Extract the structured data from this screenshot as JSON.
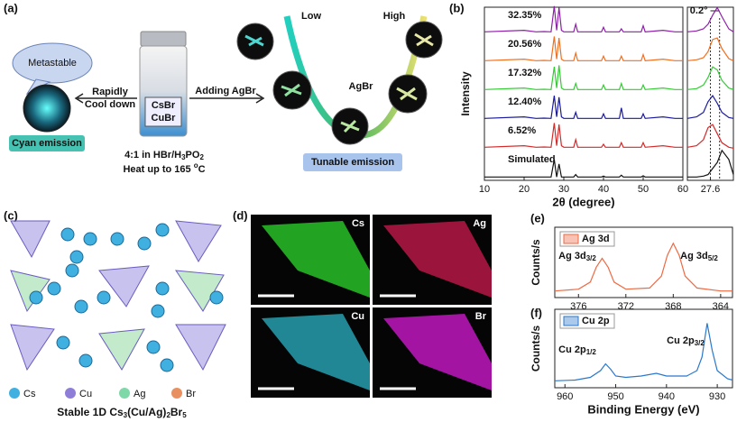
{
  "panel_a": {
    "label": "(a)",
    "metastable": "Metastable",
    "rapidly": "Rapidly",
    "cool_down": "Cool down",
    "cyan_emission": "Cyan emission",
    "vial": [
      "CsBr",
      "CuBr"
    ],
    "ratio": [
      "4:1 in HBr/H",
      "3",
      "PO",
      "2"
    ],
    "heat": [
      "Heat up to 165 ",
      "o",
      "C"
    ],
    "adding": "Adding AgBr",
    "low": "Low",
    "high": "High",
    "agbr": "AgBr",
    "tunable": "Tunable emission"
  },
  "panel_b": {
    "label": "(b)"
  },
  "panel_c": {
    "label": "(c)",
    "legend": [
      "Cs",
      "Cu",
      "Ag",
      "Br"
    ],
    "caption": [
      "Stable 1D Cs",
      "3",
      "(Cu/Ag)",
      "2",
      "Br",
      "5"
    ]
  },
  "panel_d": {
    "label": "(d)",
    "maps": [
      "Cs",
      "Ag",
      "Cu",
      "Br"
    ]
  },
  "panel_e": {
    "label": "(e)"
  },
  "panel_f": {
    "label": "(f)"
  },
  "chart_data": [
    {
      "type": "line",
      "offset": true,
      "xlabel": "2θ (degree)",
      "ylabel": "Intensity",
      "xlim": [
        10,
        60
      ],
      "xticks": [
        10,
        20,
        30,
        40,
        50,
        60
      ],
      "ylim": [
        0,
        1
      ],
      "x": [
        10,
        20,
        23,
        25,
        26.8,
        27.6,
        28.2,
        28.8,
        29.4,
        30,
        32.5,
        33,
        33.5,
        39.5,
        40,
        40.5,
        44,
        44.5,
        45,
        49.5,
        50,
        50.5,
        55,
        58,
        60
      ],
      "series": [
        {
          "name": "32.35%",
          "color": "#8e1fa8",
          "values": [
            0.05,
            0.1,
            0.05,
            0.06,
            0.05,
            0.9,
            0.1,
            0.85,
            0.1,
            0.05,
            0.05,
            0.3,
            0.05,
            0.05,
            0.2,
            0.05,
            0.05,
            0.15,
            0.05,
            0.05,
            0.25,
            0.05,
            0.1,
            0.05,
            0.05
          ]
        },
        {
          "name": "20.56%",
          "color": "#f07020",
          "values": [
            0.05,
            0.1,
            0.05,
            0.06,
            0.05,
            0.85,
            0.1,
            0.8,
            0.1,
            0.05,
            0.05,
            0.3,
            0.05,
            0.05,
            0.2,
            0.05,
            0.05,
            0.2,
            0.05,
            0.05,
            0.25,
            0.05,
            0.1,
            0.05,
            0.05
          ]
        },
        {
          "name": "17.32%",
          "color": "#33cc33",
          "values": [
            0.05,
            0.1,
            0.05,
            0.06,
            0.05,
            0.8,
            0.1,
            0.85,
            0.1,
            0.05,
            0.05,
            0.25,
            0.05,
            0.05,
            0.2,
            0.05,
            0.05,
            0.25,
            0.05,
            0.05,
            0.2,
            0.05,
            0.1,
            0.05,
            0.05
          ]
        },
        {
          "name": "12.40%",
          "color": "#1a1a9c",
          "values": [
            0.05,
            0.1,
            0.05,
            0.06,
            0.05,
            0.8,
            0.1,
            0.75,
            0.1,
            0.05,
            0.05,
            0.25,
            0.05,
            0.05,
            0.2,
            0.05,
            0.05,
            0.4,
            0.05,
            0.05,
            0.2,
            0.05,
            0.1,
            0.05,
            0.05
          ]
        },
        {
          "name": "6.52%",
          "color": "#d42a2a",
          "values": [
            0.05,
            0.1,
            0.05,
            0.06,
            0.05,
            0.85,
            0.1,
            0.8,
            0.1,
            0.05,
            0.05,
            0.3,
            0.05,
            0.05,
            0.15,
            0.05,
            0.05,
            0.2,
            0.05,
            0.05,
            0.2,
            0.05,
            0.1,
            0.05,
            0.05
          ]
        },
        {
          "name": "Simulated",
          "color": "#111111",
          "values": [
            0.02,
            0.02,
            0.02,
            0.02,
            0.02,
            0.6,
            0.02,
            0.45,
            0.02,
            0.02,
            0.02,
            0.1,
            0.02,
            0.02,
            0.05,
            0.02,
            0.02,
            0.08,
            0.02,
            0.02,
            0.06,
            0.02,
            0.02,
            0.02,
            0.02
          ]
        }
      ]
    },
    {
      "type": "line",
      "offset": true,
      "xlim": [
        27.1,
        28.1
      ],
      "xticks": [
        27.6
      ],
      "ylim": [
        0,
        1
      ],
      "reference_lines": [
        27.6,
        27.8
      ],
      "annotation": "0.2°",
      "x": [
        27.1,
        27.3,
        27.45,
        27.55,
        27.65,
        27.75,
        27.85,
        28.0,
        28.1
      ],
      "series": [
        {
          "color": "#8e1fa8",
          "values": [
            0.05,
            0.08,
            0.15,
            0.3,
            0.6,
            0.85,
            0.55,
            0.15,
            0.05
          ]
        },
        {
          "color": "#f07020",
          "values": [
            0.05,
            0.08,
            0.15,
            0.35,
            0.75,
            0.8,
            0.45,
            0.12,
            0.05
          ]
        },
        {
          "color": "#33cc33",
          "values": [
            0.05,
            0.08,
            0.2,
            0.45,
            0.8,
            0.7,
            0.35,
            0.1,
            0.05
          ]
        },
        {
          "color": "#1a1a9c",
          "values": [
            0.05,
            0.1,
            0.25,
            0.6,
            0.8,
            0.55,
            0.25,
            0.08,
            0.05
          ]
        },
        {
          "color": "#d42a2a",
          "values": [
            0.05,
            0.1,
            0.3,
            0.7,
            0.8,
            0.5,
            0.2,
            0.05,
            0.02
          ]
        },
        {
          "color": "#111111",
          "values": [
            0.02,
            0.02,
            0.05,
            0.1,
            0.3,
            0.5,
            0.9,
            0.6,
            0.1
          ]
        }
      ]
    },
    {
      "type": "line",
      "ylabel": "Counts/s",
      "xlim": [
        378,
        363
      ],
      "xticks": [
        376,
        372,
        368,
        364
      ],
      "ylim": [
        0,
        1
      ],
      "x": [
        378,
        376,
        375,
        374.5,
        374,
        373.5,
        373,
        372,
        370,
        369,
        368.5,
        368,
        367.5,
        367,
        366,
        364,
        363
      ],
      "series": [
        {
          "name": "Ag 3d",
          "color": "#ee6a44",
          "values": [
            0.05,
            0.08,
            0.2,
            0.45,
            0.6,
            0.45,
            0.2,
            0.08,
            0.1,
            0.3,
            0.65,
            0.85,
            0.65,
            0.3,
            0.1,
            0.05,
            0.05
          ]
        }
      ],
      "annotations": [
        [
          "Ag 3d",
          "3/2"
        ],
        [
          "Ag 3d",
          "5/2"
        ]
      ]
    },
    {
      "type": "line",
      "ylabel": "Counts/s",
      "xlabel": "Binding Energy (eV)",
      "xlim": [
        962,
        927
      ],
      "xticks": [
        960,
        950,
        940,
        930
      ],
      "ylim": [
        0,
        1
      ],
      "x": [
        962,
        958,
        955,
        953,
        952,
        951,
        950,
        948,
        945,
        942,
        940,
        936,
        934,
        933,
        932,
        931,
        930,
        928,
        927
      ],
      "series": [
        {
          "name": "Cu 2p",
          "color": "#2a78cc",
          "values": [
            0.05,
            0.06,
            0.1,
            0.2,
            0.3,
            0.22,
            0.12,
            0.1,
            0.12,
            0.16,
            0.12,
            0.12,
            0.2,
            0.4,
            0.9,
            0.5,
            0.2,
            0.08,
            0.06
          ]
        }
      ],
      "annotations": [
        [
          "Cu 2p",
          "1/2"
        ],
        [
          "Cu 2p",
          "3/2"
        ]
      ]
    }
  ]
}
